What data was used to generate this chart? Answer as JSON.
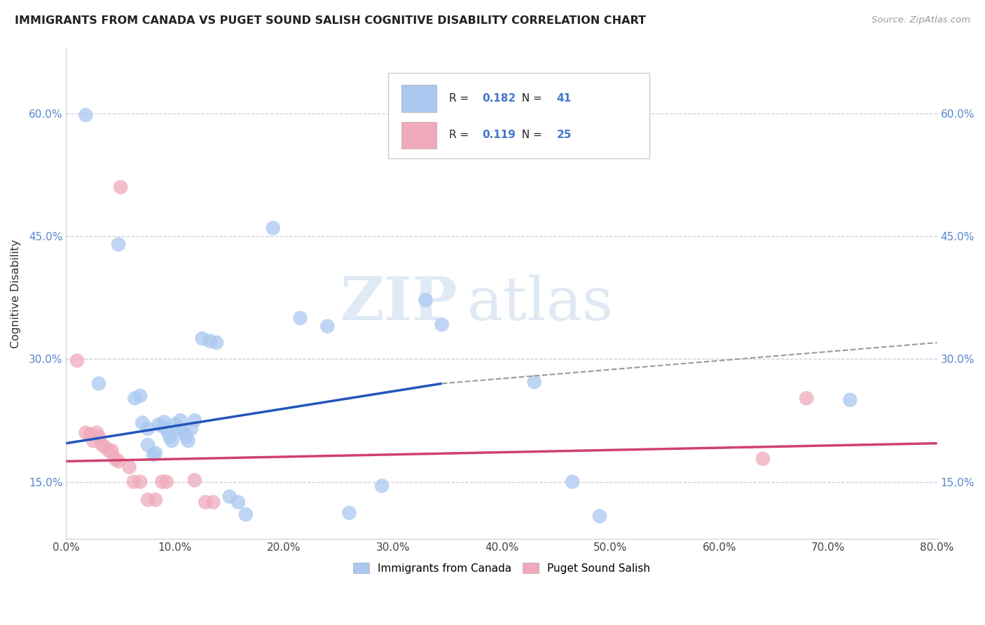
{
  "title": "IMMIGRANTS FROM CANADA VS PUGET SOUND SALISH COGNITIVE DISABILITY CORRELATION CHART",
  "source": "Source: ZipAtlas.com",
  "ylabel_label": "Cognitive Disability",
  "xlim": [
    0.0,
    0.8
  ],
  "ylim": [
    0.08,
    0.68
  ],
  "yticks": [
    0.15,
    0.3,
    0.45,
    0.6
  ],
  "ylabel_ticks": [
    "15.0%",
    "30.0%",
    "45.0%",
    "60.0%"
  ],
  "xticks": [
    0.0,
    0.1,
    0.2,
    0.3,
    0.4,
    0.5,
    0.6,
    0.7,
    0.8
  ],
  "legend1_label": "Immigrants from Canada",
  "legend2_label": "Puget Sound Salish",
  "R1": "0.182",
  "N1": "41",
  "R2": "0.119",
  "N2": "25",
  "color_blue": "#aac8f0",
  "color_pink": "#f0aabb",
  "line_color_blue": "#2255bb",
  "line_color_pink": "#d04070",
  "watermark_zip": "ZIP",
  "watermark_atlas": "atlas",
  "blue_points": [
    [
      0.018,
      0.598
    ],
    [
      0.03,
      0.27
    ],
    [
      0.048,
      0.44
    ],
    [
      0.063,
      0.252
    ],
    [
      0.068,
      0.255
    ],
    [
      0.07,
      0.222
    ],
    [
      0.075,
      0.215
    ],
    [
      0.075,
      0.195
    ],
    [
      0.08,
      0.183
    ],
    [
      0.082,
      0.185
    ],
    [
      0.085,
      0.22
    ],
    [
      0.088,
      0.218
    ],
    [
      0.09,
      0.223
    ],
    [
      0.093,
      0.212
    ],
    [
      0.095,
      0.205
    ],
    [
      0.097,
      0.2
    ],
    [
      0.1,
      0.22
    ],
    [
      0.103,
      0.215
    ],
    [
      0.105,
      0.225
    ],
    [
      0.108,
      0.21
    ],
    [
      0.11,
      0.205
    ],
    [
      0.112,
      0.2
    ],
    [
      0.115,
      0.215
    ],
    [
      0.118,
      0.225
    ],
    [
      0.125,
      0.325
    ],
    [
      0.132,
      0.322
    ],
    [
      0.138,
      0.32
    ],
    [
      0.15,
      0.132
    ],
    [
      0.158,
      0.125
    ],
    [
      0.165,
      0.11
    ],
    [
      0.19,
      0.46
    ],
    [
      0.215,
      0.35
    ],
    [
      0.24,
      0.34
    ],
    [
      0.26,
      0.112
    ],
    [
      0.29,
      0.145
    ],
    [
      0.33,
      0.372
    ],
    [
      0.345,
      0.342
    ],
    [
      0.43,
      0.272
    ],
    [
      0.465,
      0.15
    ],
    [
      0.49,
      0.108
    ],
    [
      0.72,
      0.25
    ]
  ],
  "pink_points": [
    [
      0.01,
      0.298
    ],
    [
      0.018,
      0.21
    ],
    [
      0.022,
      0.208
    ],
    [
      0.025,
      0.2
    ],
    [
      0.028,
      0.21
    ],
    [
      0.03,
      0.205
    ],
    [
      0.033,
      0.195
    ],
    [
      0.036,
      0.192
    ],
    [
      0.04,
      0.187
    ],
    [
      0.042,
      0.188
    ],
    [
      0.045,
      0.178
    ],
    [
      0.048,
      0.175
    ],
    [
      0.05,
      0.51
    ],
    [
      0.058,
      0.168
    ],
    [
      0.062,
      0.15
    ],
    [
      0.068,
      0.15
    ],
    [
      0.075,
      0.128
    ],
    [
      0.082,
      0.128
    ],
    [
      0.088,
      0.15
    ],
    [
      0.092,
      0.15
    ],
    [
      0.118,
      0.152
    ],
    [
      0.128,
      0.125
    ],
    [
      0.135,
      0.125
    ],
    [
      0.64,
      0.178
    ],
    [
      0.68,
      0.252
    ]
  ],
  "blue_line": [
    [
      0.0,
      0.197
    ],
    [
      0.345,
      0.27
    ]
  ],
  "pink_line": [
    [
      0.0,
      0.175
    ],
    [
      0.8,
      0.197
    ]
  ],
  "dash_line": [
    [
      0.345,
      0.27
    ],
    [
      0.8,
      0.32
    ]
  ]
}
